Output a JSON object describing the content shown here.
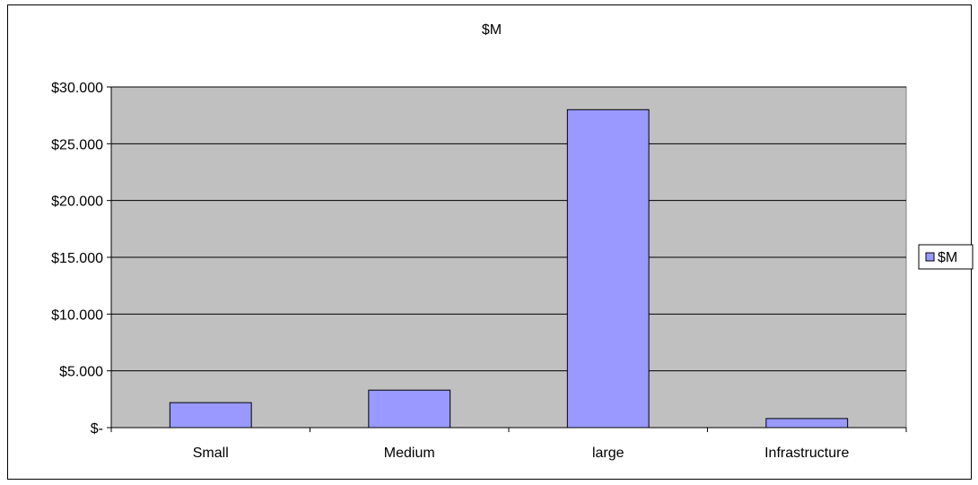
{
  "chart_data": {
    "type": "bar",
    "title": "$M",
    "xlabel": "",
    "ylabel": "",
    "categories": [
      "Small",
      "Medium",
      "large",
      "Infrastructure"
    ],
    "series": [
      {
        "name": "$M",
        "values": [
          2.2,
          3.3,
          28.0,
          0.8
        ]
      }
    ],
    "ylim": [
      0,
      30
    ],
    "yticks": [
      0,
      5,
      10,
      15,
      20,
      25,
      30
    ],
    "ytick_labels": [
      "$-",
      "$5.000",
      "$10.000",
      "$15.000",
      "$20.000",
      "$25.000",
      "$30.000"
    ],
    "grid": true,
    "legend_position": "right",
    "colors": {
      "plot_background": "#c0c0c0",
      "bar_fill": "#9999ff",
      "bar_stroke": "#000000",
      "gridline": "#000000"
    }
  }
}
